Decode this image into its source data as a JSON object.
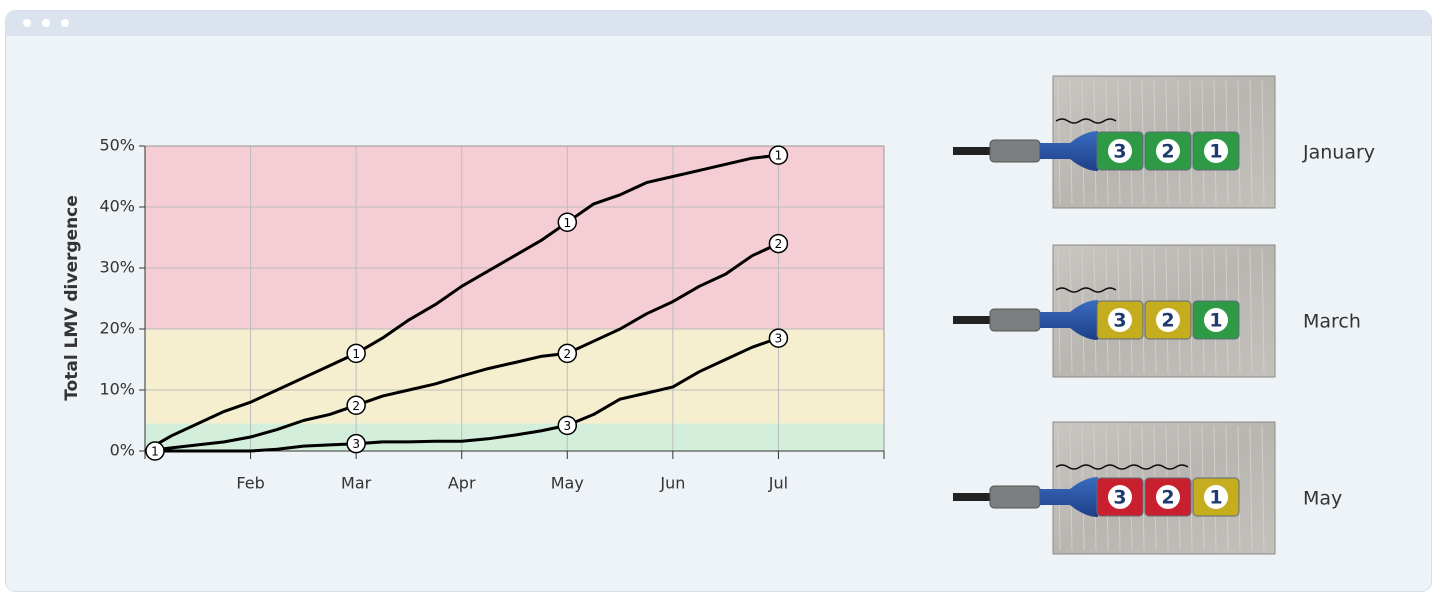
{
  "chart_data": {
    "type": "line",
    "y_label": "Total LMV divergence",
    "categories": [
      null,
      null,
      null,
      null,
      "Feb",
      null,
      null,
      null,
      "Mar",
      null,
      null,
      null,
      "Apr",
      null,
      null,
      null,
      "May",
      null,
      null,
      null,
      "Jun",
      null,
      null,
      null,
      "Jul",
      null,
      null,
      null,
      null
    ],
    "ylim": [
      0,
      50
    ],
    "yticks": [
      {
        "value": 0,
        "label": "0%"
      },
      {
        "value": 10,
        "label": "10%"
      },
      {
        "value": 20,
        "label": "20%"
      },
      {
        "value": 30,
        "label": "30%"
      },
      {
        "value": 40,
        "label": "40%"
      },
      {
        "value": 50,
        "label": "50%"
      }
    ],
    "grid": true,
    "zones": [
      {
        "from": 0,
        "to": 4.5,
        "color": "#d3eedb"
      },
      {
        "from": 4.5,
        "to": 20,
        "color": "#f5efcf"
      },
      {
        "from": 20,
        "to": 50,
        "color": "#f5cdd5"
      }
    ],
    "series": [
      {
        "name": "1",
        "color": "#000000",
        "markers": [
          0,
          8,
          16,
          24
        ],
        "values": [
          0,
          2.5,
          4.5,
          6.5,
          8,
          10,
          12,
          14,
          16,
          18.5,
          21.5,
          24,
          27,
          29.5,
          32,
          34.5,
          37.5,
          40.5,
          42,
          44,
          45,
          46,
          47,
          48,
          48.5,
          null,
          null,
          null,
          null
        ]
      },
      {
        "name": "2",
        "color": "#000000",
        "markers": [
          8,
          16,
          24
        ],
        "values": [
          0,
          0.5,
          1,
          1.5,
          2.3,
          3.5,
          5,
          6,
          7.5,
          9,
          10,
          11,
          12.3,
          13.5,
          14.5,
          15.5,
          16,
          18,
          20,
          22.5,
          24.5,
          27,
          29,
          32,
          34,
          null,
          null,
          null,
          null
        ]
      },
      {
        "name": "3",
        "color": "#000000",
        "markers": [
          8,
          16,
          24
        ],
        "values": [
          0,
          0,
          0,
          0,
          0,
          0.3,
          0.8,
          1,
          1.2,
          1.5,
          1.5,
          1.6,
          1.6,
          2,
          2.6,
          3.3,
          4.2,
          6,
          8.5,
          9.5,
          10.5,
          13,
          15,
          17,
          18.5,
          null,
          null,
          null,
          null
        ]
      }
    ]
  },
  "diagram": {
    "rows": [
      {
        "label": "January",
        "cells": [
          {
            "text": "3",
            "color": "#2e9a45"
          },
          {
            "text": "2",
            "color": "#2e9a45"
          },
          {
            "text": "1",
            "color": "#2e9a45"
          }
        ]
      },
      {
        "label": "March",
        "cells": [
          {
            "text": "3",
            "color": "#c4ad1f"
          },
          {
            "text": "2",
            "color": "#c4ad1f"
          },
          {
            "text": "1",
            "color": "#2e9a45"
          }
        ]
      },
      {
        "label": "May",
        "cells": [
          {
            "text": "3",
            "color": "#c8202f"
          },
          {
            "text": "2",
            "color": "#c8202f"
          },
          {
            "text": "1",
            "color": "#c4ad1f"
          }
        ]
      }
    ]
  }
}
